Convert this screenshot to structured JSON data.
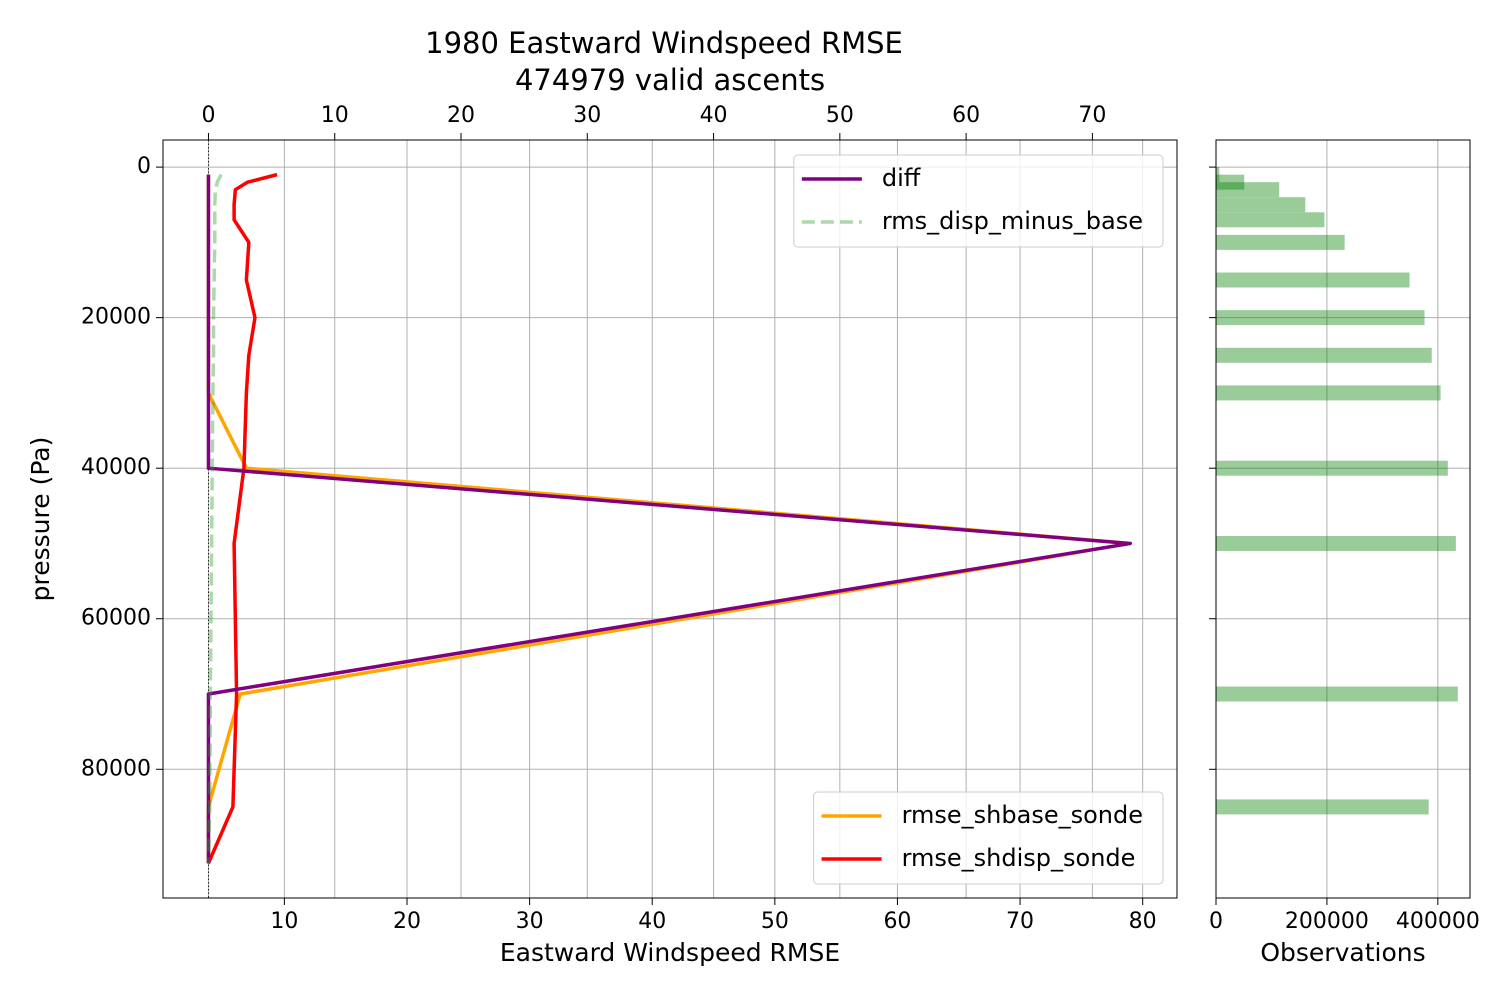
{
  "chart_data": [
    {
      "type": "line",
      "title": "1980 Eastward Windspeed RMSE",
      "subtitle": "474979 valid ascents",
      "xlabel": "Eastward Windspeed RMSE",
      "ylabel": "pressure (Pa)",
      "y": [
        1000,
        2000,
        3000,
        5000,
        7000,
        10000,
        15000,
        20000,
        25000,
        30000,
        40000,
        50000,
        70000,
        85000,
        92500
      ],
      "ylim": [
        -3600,
        97100
      ],
      "y_inverted": true,
      "yticks": [
        0,
        20000,
        40000,
        60000,
        80000
      ],
      "xlim": [
        0.1,
        82.8
      ],
      "xticks": [
        10,
        20,
        30,
        40,
        50,
        60,
        70,
        80
      ],
      "x2lim": [
        -3.6,
        76.7
      ],
      "x2ticks": [
        0,
        10,
        20,
        30,
        40,
        50,
        60,
        70
      ],
      "grid": true,
      "reference_line": {
        "axis": "x2",
        "value": 0
      },
      "series": [
        {
          "name": "rmse_shbase_sonde",
          "color": "#ffa500",
          "legend": "lower right",
          "values": [
            3.8,
            3.8,
            3.8,
            3.8,
            3.8,
            3.8,
            3.8,
            3.8,
            3.8,
            3.8,
            6.9,
            79.0,
            6.4,
            3.8,
            3.8
          ]
        },
        {
          "name": "rmse_shdisp_sonde",
          "color": "#ff0000",
          "legend": "lower right",
          "values": [
            9.4,
            7.0,
            6.0,
            5.9,
            5.9,
            7.1,
            6.9,
            7.6,
            7.1,
            6.9,
            6.7,
            5.9,
            6.1,
            5.8,
            3.8
          ]
        },
        {
          "name": "diff",
          "color": "#800080",
          "legend": "upper right",
          "axis": "x2",
          "values": [
            0,
            0,
            0,
            0,
            0,
            0,
            0,
            0,
            0,
            0,
            0,
            73.0,
            0,
            0,
            0
          ]
        },
        {
          "name": "rms_disp_minus_base",
          "color": "#2ca02c",
          "legend": "upper right",
          "axis": "x2",
          "dashed": true,
          "alpha": 0.4,
          "values": [
            1.0,
            0.7,
            0.55,
            0.5,
            0.5,
            0.5,
            0.45,
            0.4,
            0.4,
            0.35,
            0.3,
            0.25,
            0.15,
            0.1,
            0
          ]
        }
      ]
    },
    {
      "type": "barh",
      "xlabel": "Observations",
      "y": [
        1000,
        2000,
        3000,
        5000,
        7000,
        10000,
        15000,
        20000,
        25000,
        30000,
        40000,
        50000,
        70000,
        85000
      ],
      "values": [
        6000,
        51000,
        114000,
        161000,
        195500,
        232000,
        349000,
        376000,
        389000,
        405000,
        418000,
        432500,
        436000,
        383500
      ],
      "color": "#008000",
      "alpha": 0.4,
      "xlim": [
        0,
        458000
      ],
      "xticks": [
        0,
        200000,
        400000
      ],
      "ylim": [
        -3600,
        97100
      ],
      "y_inverted": true,
      "yticks": [
        0,
        20000,
        40000,
        60000,
        80000
      ],
      "grid": true
    }
  ]
}
